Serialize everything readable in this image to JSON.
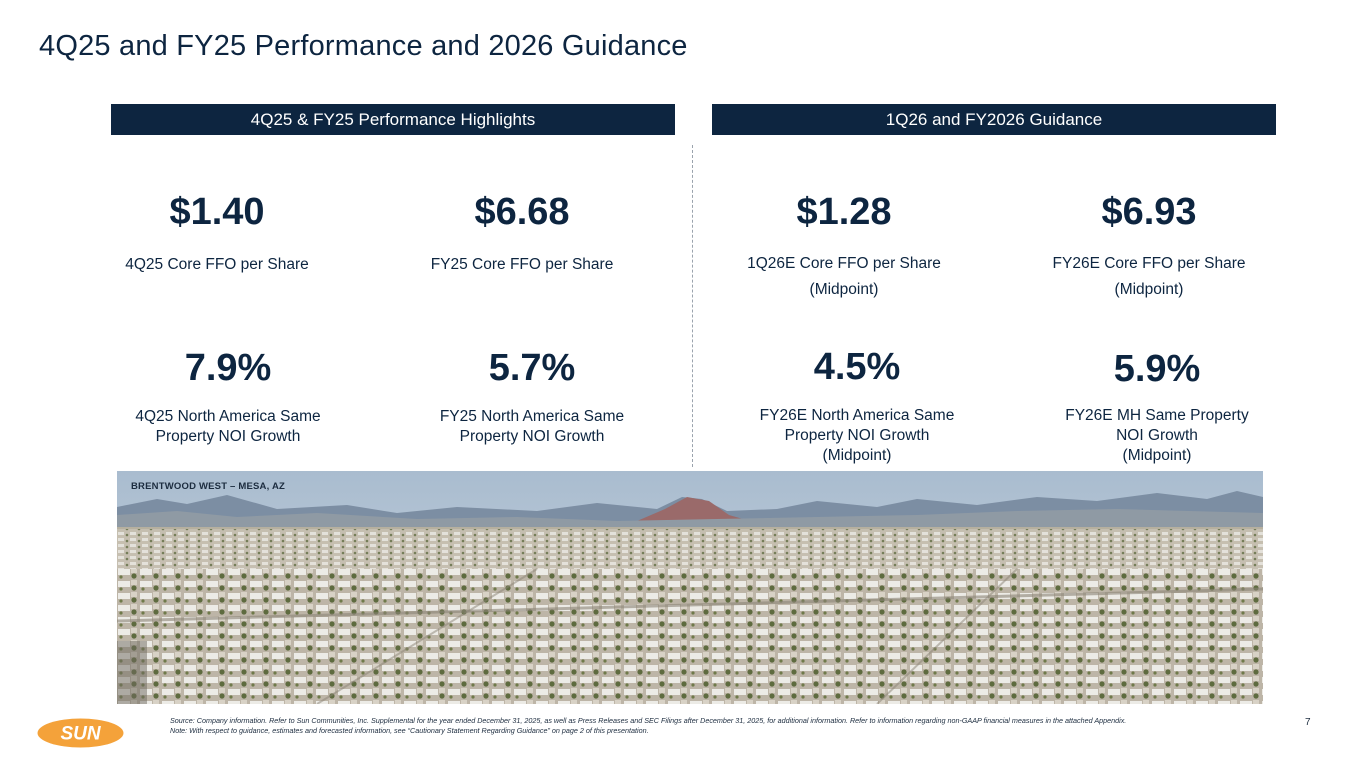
{
  "title": "4Q25 and FY25 Performance and 2026 Guidance",
  "sections": {
    "left_header": "4Q25 & FY25 Performance Highlights",
    "right_header": "1Q26 and FY2026 Guidance"
  },
  "metrics": {
    "q4_ffo": {
      "value": "$1.40",
      "label": "4Q25 Core FFO per Share"
    },
    "fy25_ffo": {
      "value": "$6.68",
      "label": "FY25 Core FFO per Share"
    },
    "q1_26_ffo": {
      "value": "$1.28",
      "label": "1Q26E Core FFO per Share",
      "sub": "(Midpoint)"
    },
    "fy26_ffo": {
      "value": "$6.93",
      "label": "FY26E Core FFO per Share",
      "sub": "(Midpoint)"
    },
    "q4_noi": {
      "value": "7.9%",
      "line1": "4Q25 North America Same",
      "line2": "Property NOI Growth"
    },
    "fy25_noi": {
      "value": "5.7%",
      "line1": "FY25 North America Same",
      "line2": "Property NOI Growth"
    },
    "fy26_na_noi": {
      "value": "4.5%",
      "line1": "FY26E North America Same",
      "line2": "Property NOI Growth",
      "line3": "(Midpoint)"
    },
    "fy26_mh_noi": {
      "value": "5.9%",
      "line1": "FY26E MH Same Property",
      "line2": "NOI Growth",
      "line3": "(Midpoint)"
    }
  },
  "photo": {
    "caption": "BRENTWOOD WEST – MESA, AZ"
  },
  "logo": {
    "text": "SUN"
  },
  "footer": {
    "source": "Source: Company information. Refer to Sun Communities, Inc. Supplemental for the year ended December 31, 2025, as well as Press Releases and SEC Filings after December 31, 2025, for additional information. Refer to information regarding non-GAAP financial measures in the attached Appendix.",
    "note": "Note:  With respect to guidance, estimates and forecasted information, see “Cautionary Statement Regarding Guidance” on page 2 of this presentation.",
    "page_number": "7"
  },
  "colors": {
    "navy": "#0d2540",
    "logo_orange": "#f4a23a"
  }
}
